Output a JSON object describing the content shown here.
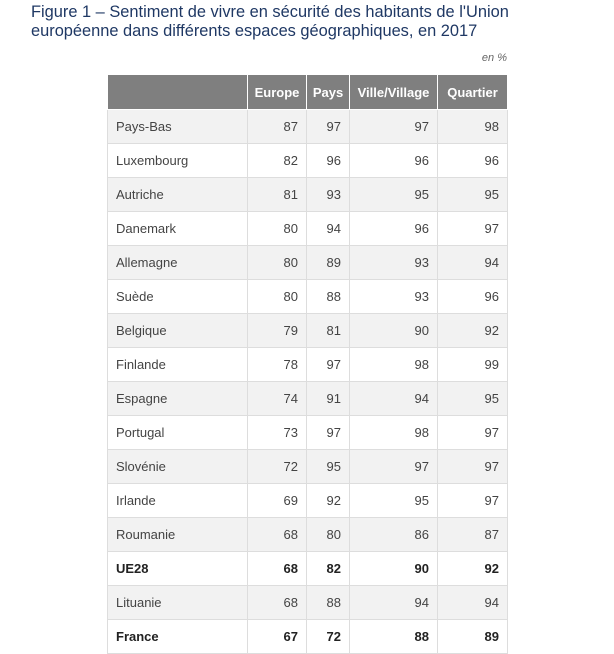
{
  "title": "Figure 1 – Sentiment de vivre en sécurité des habitants de l'Union européenne dans différents espaces géographiques, en 2017",
  "unit": "en %",
  "chart_data": {
    "type": "table",
    "columns": [
      "",
      "Europe",
      "Pays",
      "Ville/Village",
      "Quartier"
    ],
    "rows": [
      {
        "label": "Pays-Bas",
        "values": [
          87,
          97,
          97,
          98
        ],
        "bold": false
      },
      {
        "label": "Luxembourg",
        "values": [
          82,
          96,
          96,
          96
        ],
        "bold": false
      },
      {
        "label": "Autriche",
        "values": [
          81,
          93,
          95,
          95
        ],
        "bold": false
      },
      {
        "label": "Danemark",
        "values": [
          80,
          94,
          96,
          97
        ],
        "bold": false
      },
      {
        "label": "Allemagne",
        "values": [
          80,
          89,
          93,
          94
        ],
        "bold": false
      },
      {
        "label": "Suède",
        "values": [
          80,
          88,
          93,
          96
        ],
        "bold": false
      },
      {
        "label": "Belgique",
        "values": [
          79,
          81,
          90,
          92
        ],
        "bold": false
      },
      {
        "label": "Finlande",
        "values": [
          78,
          97,
          98,
          99
        ],
        "bold": false
      },
      {
        "label": "Espagne",
        "values": [
          74,
          91,
          94,
          95
        ],
        "bold": false
      },
      {
        "label": "Portugal",
        "values": [
          73,
          97,
          98,
          97
        ],
        "bold": false
      },
      {
        "label": "Slovénie",
        "values": [
          72,
          95,
          97,
          97
        ],
        "bold": false
      },
      {
        "label": "Irlande",
        "values": [
          69,
          92,
          95,
          97
        ],
        "bold": false
      },
      {
        "label": "Roumanie",
        "values": [
          68,
          80,
          86,
          87
        ],
        "bold": false
      },
      {
        "label": "UE28",
        "values": [
          68,
          82,
          90,
          92
        ],
        "bold": true
      },
      {
        "label": "Lituanie",
        "values": [
          68,
          88,
          94,
          94
        ],
        "bold": false
      },
      {
        "label": "France",
        "values": [
          67,
          72,
          88,
          89
        ],
        "bold": true
      }
    ]
  }
}
